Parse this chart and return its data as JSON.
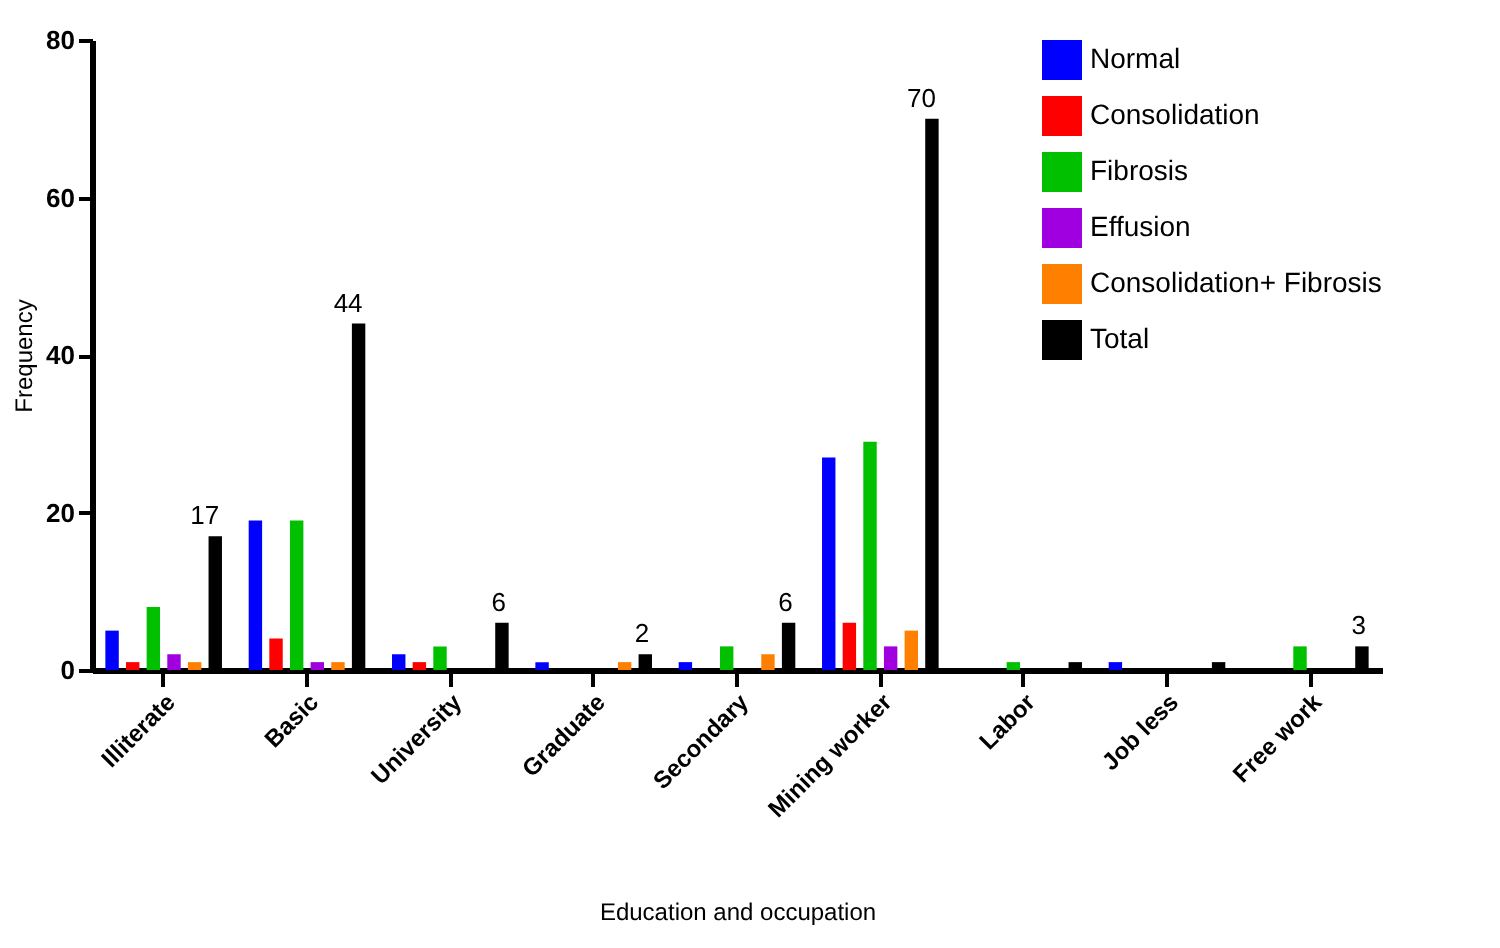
{
  "chart_data": {
    "type": "bar",
    "xlabel": "Education and occupation",
    "ylabel": "Frequency",
    "categories": [
      "Illiterate",
      "Basic",
      "University",
      "Graduate",
      "Secondary",
      "Mining worker",
      "Labor",
      "Job less",
      "Free work"
    ],
    "series": [
      {
        "name": "Normal",
        "color": "#0000ff",
        "values": [
          5,
          19,
          2,
          1,
          1,
          27,
          0,
          1,
          0
        ]
      },
      {
        "name": "Consolidation",
        "color": "#ff0000",
        "values": [
          1,
          4,
          1,
          0,
          0,
          6,
          0,
          0,
          0
        ]
      },
      {
        "name": "Fibrosis",
        "color": "#00c000",
        "values": [
          8,
          19,
          3,
          0,
          3,
          29,
          1,
          0,
          3
        ]
      },
      {
        "name": "Effusion",
        "color": "#a000e0",
        "values": [
          2,
          1,
          0,
          0,
          0,
          3,
          0,
          0,
          0
        ]
      },
      {
        "name": "Consolidation+ Fibrosis",
        "color": "#ff8000",
        "values": [
          1,
          1,
          0,
          1,
          2,
          5,
          0,
          0,
          0
        ]
      },
      {
        "name": "Total",
        "color": "#000000",
        "values": [
          17,
          44,
          6,
          2,
          6,
          70,
          1,
          1,
          3
        ],
        "value_labels": [
          "17",
          "44",
          "6",
          "2",
          "6",
          "70",
          null,
          null,
          "3"
        ]
      }
    ],
    "ylim": [
      0,
      80
    ],
    "yticks": [
      0,
      20,
      40,
      60,
      80
    ],
    "grid": false,
    "legend": "top right"
  }
}
